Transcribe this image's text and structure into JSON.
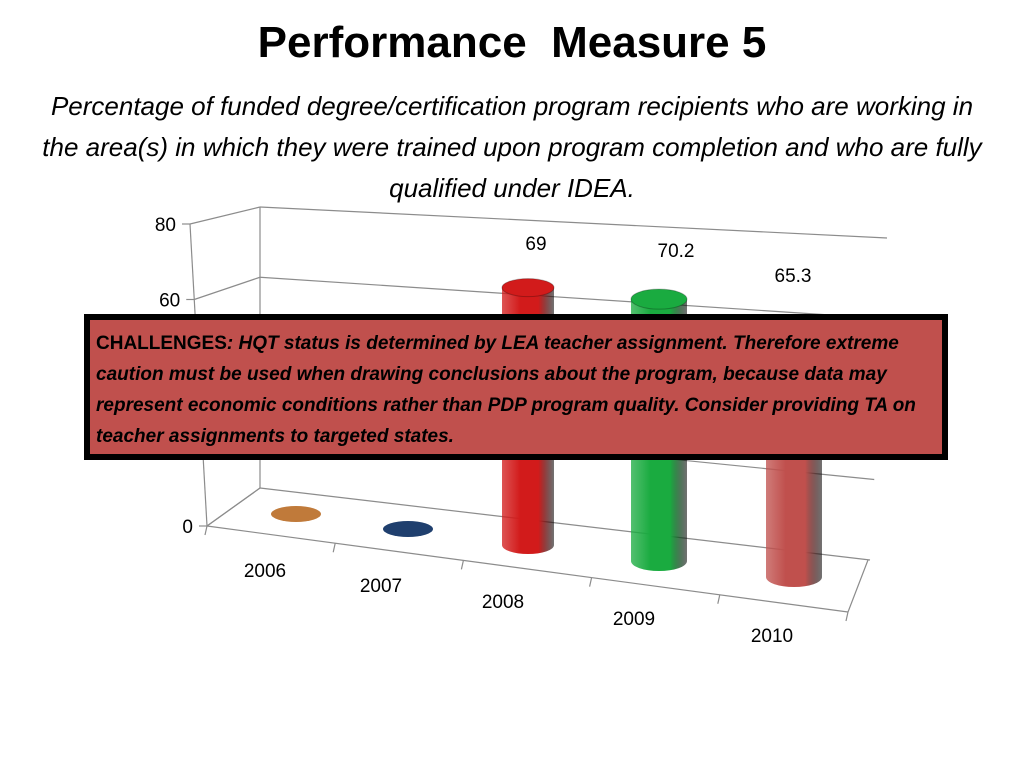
{
  "title": "Performance  Measure 5",
  "subtitle": "Percentage of funded degree/certification program recipients who are working in the area(s) in which they were trained upon program completion and who are fully qualified under IDEA.",
  "challenge": {
    "lead": "CHALLENGES",
    "text": ":  HQT status is determined by LEA teacher assignment. Therefore extreme caution must be used when drawing conclusions about the program, because data may represent economic conditions rather than PDP program quality.   Consider providing TA on teacher assignments to targeted states."
  },
  "chart_data": {
    "type": "bar",
    "style": "3d-cylinder",
    "categories": [
      "2006",
      "2007",
      "2008",
      "2009",
      "2010"
    ],
    "values": [
      0,
      0,
      69,
      70.2,
      65.3
    ],
    "data_labels": [
      "",
      "",
      "69",
      "70.2",
      "65.3"
    ],
    "colors": [
      "#c07a3a",
      "#1f3f6e",
      "#d21b1b",
      "#1aab40",
      "#c0504d"
    ],
    "yticks": [
      "0",
      "20",
      "40",
      "60",
      "80"
    ],
    "ylim": [
      0,
      80
    ],
    "grid": true,
    "legend": "none"
  }
}
